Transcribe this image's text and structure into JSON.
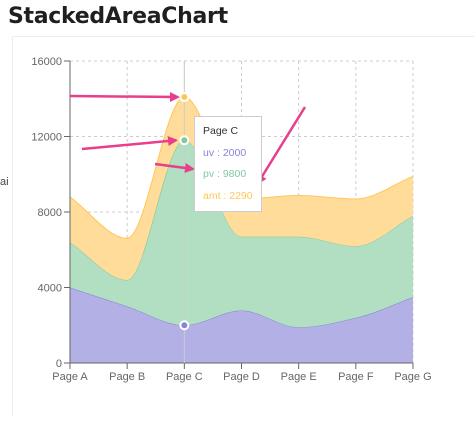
{
  "page": {
    "title": "StackedAreaChart",
    "side_label": "ai"
  },
  "chart_data": {
    "type": "area",
    "stacked": true,
    "categories": [
      "Page A",
      "Page B",
      "Page C",
      "Page D",
      "Page E",
      "Page F",
      "Page G"
    ],
    "series": [
      {
        "name": "uv",
        "values": [
          4000,
          3000,
          2000,
          2780,
          1890,
          2390,
          3490
        ],
        "stroke": "#8884d8",
        "fill": "#b3b0e6"
      },
      {
        "name": "pv",
        "values": [
          2400,
          1398,
          9800,
          3908,
          4800,
          3800,
          4300
        ],
        "stroke": "#82ca9d",
        "fill": "#b2dfc2"
      },
      {
        "name": "amt",
        "values": [
          2400,
          2210,
          2290,
          2000,
          2181,
          2500,
          2100
        ],
        "stroke": "#ffc658",
        "fill": "#ffdc99"
      }
    ],
    "ylim": [
      0,
      16000
    ],
    "yticks": [
      0,
      4000,
      8000,
      12000,
      16000
    ],
    "grid": true,
    "active_index": 2
  },
  "tooltip": {
    "title": "Page C",
    "rows": [
      {
        "text": "uv : 2000",
        "color": "#8884d8"
      },
      {
        "text": "pv : 9800",
        "color": "#82ca9d"
      },
      {
        "text": "amt : 2290",
        "color": "#ffc658"
      }
    ]
  },
  "annotations": {
    "arrow_color": "#e83e8c",
    "count": 4
  }
}
